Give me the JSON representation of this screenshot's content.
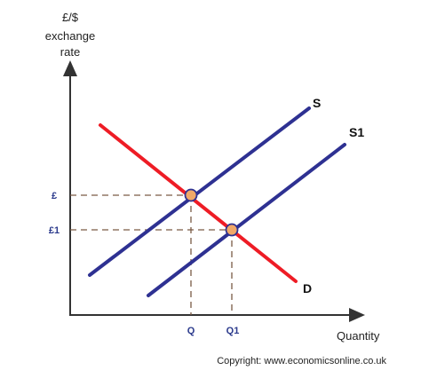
{
  "chart_data": {
    "type": "line",
    "ylabel_lines": [
      "£/$",
      "exchange",
      "rate"
    ],
    "xlabel": "Quantity",
    "copyright": "Copyright: www.economicsonline.co.uk",
    "curves": {
      "S": {
        "label": "S",
        "color": "#2e3192"
      },
      "S1": {
        "label": "S1",
        "color": "#2e3192"
      },
      "D": {
        "label": "D",
        "color": "#ee1c25"
      }
    },
    "equilibria": [
      {
        "x_label": "Q",
        "y_label": "£"
      },
      {
        "x_label": "Q1",
        "y_label": "£1"
      }
    ],
    "colors": {
      "axis": "#333333",
      "supply": "#2e3192",
      "demand": "#ee1c25",
      "point_fill": "#f0a868",
      "point_stroke": "#2e3192",
      "guide": "#7a5a44",
      "tick_label": "#2b3a8c"
    }
  }
}
